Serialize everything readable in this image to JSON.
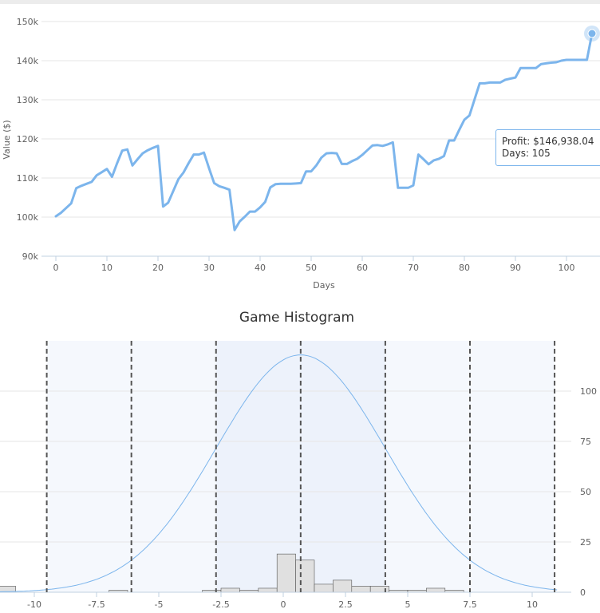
{
  "chart_data": [
    {
      "type": "line",
      "title": "",
      "xlabel": "Days",
      "ylabel": "Value ($)",
      "xlim": [
        0,
        105
      ],
      "ylim": [
        90000,
        150000
      ],
      "x_ticks": [
        0,
        10,
        20,
        30,
        40,
        50,
        60,
        70,
        80,
        90,
        100
      ],
      "y_ticks": [
        90000,
        100000,
        110000,
        120000,
        130000,
        140000,
        150000
      ],
      "y_tick_labels": [
        "90k",
        "100k",
        "110k",
        "120k",
        "130k",
        "140k",
        "150k"
      ],
      "grid": true,
      "series": [
        {
          "color": "#7cb5ec",
          "x": [
            0,
            1,
            2,
            3,
            4,
            5,
            6,
            7,
            8,
            9,
            10,
            11,
            12,
            13,
            14,
            15,
            16,
            17,
            18,
            19,
            20,
            21,
            22,
            23,
            24,
            25,
            26,
            27,
            28,
            29,
            30,
            31,
            32,
            33,
            34,
            35,
            36,
            37,
            38,
            39,
            40,
            41,
            42,
            43,
            44,
            45,
            46,
            47,
            48,
            49,
            50,
            51,
            52,
            53,
            54,
            55,
            56,
            57,
            58,
            59,
            60,
            61,
            62,
            63,
            64,
            65,
            66,
            67,
            68,
            69,
            70,
            71,
            72,
            73,
            74,
            75,
            76,
            77,
            78,
            79,
            80,
            81,
            82,
            83,
            84,
            85,
            86,
            87,
            88,
            89,
            90,
            91,
            92,
            93,
            94,
            95,
            96,
            97,
            98,
            99,
            100,
            101,
            102,
            103,
            104,
            105
          ],
          "y": [
            100200,
            101100,
            102300,
            103500,
            107400,
            108000,
            108500,
            109000,
            110700,
            111500,
            112300,
            110300,
            113800,
            117000,
            117300,
            113200,
            114800,
            116300,
            117100,
            117700,
            118200,
            102700,
            103700,
            106700,
            109700,
            111400,
            113800,
            116000,
            116000,
            116500,
            112500,
            108700,
            107900,
            107500,
            107000,
            96700,
            98900,
            100100,
            101400,
            101400,
            102500,
            103900,
            107600,
            108400,
            108500,
            108500,
            108500,
            108600,
            108700,
            111700,
            111700,
            113200,
            115200,
            116300,
            116400,
            116300,
            113600,
            113600,
            114300,
            114900,
            115900,
            117100,
            118300,
            118400,
            118200,
            118600,
            119100,
            107500,
            107500,
            107500,
            108100,
            116000,
            114800,
            113500,
            114500,
            114900,
            115600,
            119600,
            119600,
            122300,
            124900,
            126000,
            130100,
            134200,
            134200,
            134400,
            134400,
            134400,
            135100,
            135400,
            135700,
            138100,
            138100,
            138100,
            138100,
            139100,
            139300,
            139500,
            139600,
            140000,
            140200,
            140200,
            140200,
            140200,
            140200,
            146938.04
          ]
        }
      ],
      "tooltip": {
        "profit_label": "Profit: $146,938.04",
        "days_label": "Days: 105"
      }
    },
    {
      "type": "bar",
      "title": "Game Histogram",
      "xlim": [
        -11.5,
        12
      ],
      "ylim": [
        0,
        125
      ],
      "x_ticks": [
        -10,
        -7.5,
        -5,
        -2.5,
        0,
        2.5,
        5,
        7.5,
        10
      ],
      "x_tick_labels": [
        "-10",
        "-7.5",
        "-5",
        "-2.5",
        "0",
        "2.5",
        "5",
        "7.5",
        "10"
      ],
      "y_ticks": [
        0,
        25,
        50,
        75,
        100
      ],
      "y_tick_labels": [
        "0",
        "25",
        "50",
        "75",
        "100"
      ],
      "grid": true,
      "bar_color": "#e0e0e0",
      "bar_border": "#555555",
      "bins": [
        {
          "x0": -11.5,
          "x1": -10.75,
          "count": 3
        },
        {
          "x0": -10.75,
          "x1": -10.0,
          "count": 0
        },
        {
          "x0": -10.0,
          "x1": -9.25,
          "count": 0
        },
        {
          "x0": -9.25,
          "x1": -8.5,
          "count": 0
        },
        {
          "x0": -8.5,
          "x1": -7.75,
          "count": 0
        },
        {
          "x0": -7.75,
          "x1": -7.0,
          "count": 0
        },
        {
          "x0": -7.0,
          "x1": -6.25,
          "count": 1
        },
        {
          "x0": -6.25,
          "x1": -5.5,
          "count": 0
        },
        {
          "x0": -5.5,
          "x1": -4.75,
          "count": 0
        },
        {
          "x0": -4.75,
          "x1": -4.0,
          "count": 0
        },
        {
          "x0": -4.0,
          "x1": -3.25,
          "count": 0
        },
        {
          "x0": -3.25,
          "x1": -2.5,
          "count": 1
        },
        {
          "x0": -2.5,
          "x1": -1.75,
          "count": 2
        },
        {
          "x0": -1.75,
          "x1": -1.0,
          "count": 1
        },
        {
          "x0": -1.0,
          "x1": -0.25,
          "count": 2
        },
        {
          "x0": -0.25,
          "x1": 0.5,
          "count": 19
        },
        {
          "x0": 0.5,
          "x1": 1.25,
          "count": 16
        },
        {
          "x0": 1.25,
          "x1": 2.0,
          "count": 4
        },
        {
          "x0": 2.0,
          "x1": 2.75,
          "count": 6
        },
        {
          "x0": 2.75,
          "x1": 3.5,
          "count": 3
        },
        {
          "x0": 3.5,
          "x1": 4.25,
          "count": 3
        },
        {
          "x0": 4.25,
          "x1": 5.0,
          "count": 1
        },
        {
          "x0": 5.0,
          "x1": 5.75,
          "count": 1
        },
        {
          "x0": 5.75,
          "x1": 6.5,
          "count": 2
        },
        {
          "x0": 6.5,
          "x1": 7.25,
          "count": 1
        }
      ],
      "normal_curve": {
        "mean": 0.7,
        "sd": 3.4,
        "peak": 118,
        "color": "#7cb5ec"
      },
      "sigma_lines": [
        -9.5,
        -6.1,
        -2.7,
        0.7,
        4.1,
        7.5,
        10.9
      ],
      "band_colors": [
        "#f5f8fd",
        "#edf2fb"
      ]
    }
  ]
}
